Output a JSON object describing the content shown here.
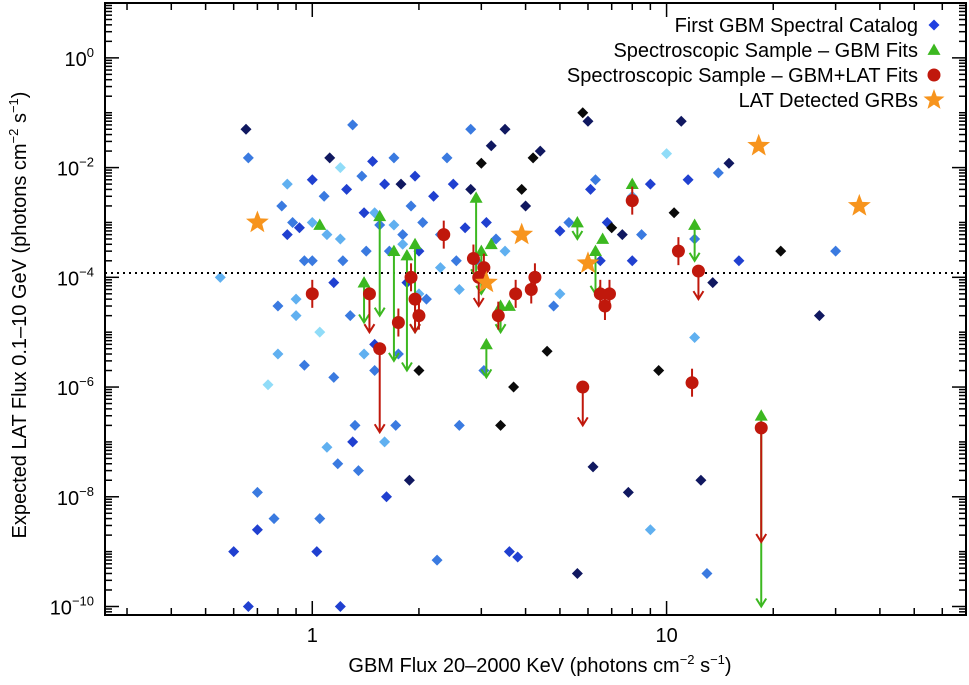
{
  "chart_data": {
    "type": "scatter",
    "xlabel": "GBM Flux 20–2000 KeV (photons cm",
    "xlabel_sup1": "−2",
    "xlabel_mid": " s",
    "xlabel_sup2": "−1",
    "xlabel_end": ")",
    "ylabel": "Expected LAT Flux 0.1–10 GeV (photons cm",
    "ylabel_sup1": "−2",
    "ylabel_mid": " s",
    "ylabel_sup2": "−1",
    "ylabel_end": ")",
    "x_scale": "log",
    "y_scale": "log",
    "xlim": [
      0.26,
      70
    ],
    "ylim": [
      7e-11,
      10
    ],
    "x_ticks": [
      {
        "value": 1,
        "label": "1"
      },
      {
        "value": 10,
        "label": "10"
      }
    ],
    "y_ticks": [
      {
        "value": 1e-10,
        "base": "10",
        "exp": "−10"
      },
      {
        "value": 1e-08,
        "base": "10",
        "exp": "−8"
      },
      {
        "value": 1e-06,
        "base": "10",
        "exp": "−6"
      },
      {
        "value": 0.0001,
        "base": "10",
        "exp": "−4"
      },
      {
        "value": 0.01,
        "base": "10",
        "exp": "−2"
      },
      {
        "value": 1,
        "base": "10",
        "exp": "0"
      }
    ],
    "threshold_line": {
      "y": 0.00012,
      "style": "dotted"
    },
    "legend_position": "top-right",
    "legend": [
      {
        "label": "First GBM Spectral Catalog",
        "marker": "diamond",
        "color": "#2040e0"
      },
      {
        "label": "Spectroscopic Sample – GBM Fits",
        "marker": "triangle",
        "color": "#3cb820"
      },
      {
        "label": "Spectroscopic Sample – GBM+LAT Fits",
        "marker": "circle",
        "color": "#c0180c"
      },
      {
        "label": "LAT Detected GRBs",
        "marker": "star",
        "color": "#f7941d"
      }
    ],
    "catalog_colors": [
      "#60b0f0",
      "#3a7ae0",
      "#2040d0",
      "#101860",
      "#0a0a0a",
      "#90dcf8"
    ],
    "series": [
      {
        "name": "First GBM Spectral Catalog",
        "marker": "diamond",
        "points": [
          [
            0.65,
            0.05,
            3
          ],
          [
            0.66,
            0.015,
            1
          ],
          [
            0.55,
            0.0001,
            0
          ],
          [
            0.6,
            1e-09,
            2
          ],
          [
            0.66,
            1e-10,
            2
          ],
          [
            0.7,
            1.2e-08,
            1
          ],
          [
            0.7,
            2.5e-09,
            2
          ],
          [
            0.75,
            1.1e-06,
            5
          ],
          [
            0.78,
            4e-09,
            1
          ],
          [
            0.8,
            4e-06,
            0
          ],
          [
            0.8,
            3e-05,
            1
          ],
          [
            0.82,
            0.002,
            1
          ],
          [
            0.85,
            0.0006,
            2
          ],
          [
            0.88,
            0.001,
            1
          ],
          [
            0.9,
            4e-05,
            0
          ],
          [
            0.92,
            0.0008,
            2
          ],
          [
            0.95,
            0.0002,
            1
          ],
          [
            0.95,
            2.5e-06,
            1
          ],
          [
            1.0,
            0.0002,
            1
          ],
          [
            1.0,
            0.006,
            2
          ],
          [
            1.03,
            1e-09,
            2
          ],
          [
            1.05,
            4e-09,
            1
          ],
          [
            1.05,
            1e-05,
            5
          ],
          [
            1.08,
            0.003,
            1
          ],
          [
            1.1,
            0.0006,
            0
          ],
          [
            1.12,
            0.015,
            3
          ],
          [
            1.15,
            1.5e-06,
            1
          ],
          [
            1.15,
            8e-05,
            2
          ],
          [
            1.18,
            4e-08,
            1
          ],
          [
            1.2,
            1e-10,
            2
          ],
          [
            1.2,
            0.01,
            5
          ],
          [
            1.22,
            0.0002,
            1
          ],
          [
            1.25,
            0.004,
            2
          ],
          [
            1.28,
            2e-05,
            1
          ],
          [
            1.3,
            0.06,
            1
          ],
          [
            1.3,
            1e-07,
            2
          ],
          [
            1.32,
            2e-07,
            1
          ],
          [
            1.35,
            3e-08,
            1
          ],
          [
            1.38,
            0.007,
            1
          ],
          [
            1.4,
            0.0015,
            2
          ],
          [
            1.42,
            0.0003,
            1
          ],
          [
            1.45,
            5e-05,
            1
          ],
          [
            1.48,
            0.013,
            2
          ],
          [
            1.5,
            2e-06,
            1
          ],
          [
            1.5,
            6e-06,
            2
          ],
          [
            1.55,
            0.0009,
            1
          ],
          [
            1.6,
            0.005,
            2
          ],
          [
            1.62,
            1e-08,
            2
          ],
          [
            1.65,
            0.0003,
            1
          ],
          [
            1.7,
            0.015,
            1
          ],
          [
            1.72,
            2e-07,
            1
          ],
          [
            1.75,
            4e-06,
            1
          ],
          [
            1.78,
            0.005,
            3
          ],
          [
            1.8,
            0.0006,
            1
          ],
          [
            1.85,
            8e-05,
            2
          ],
          [
            1.88,
            2e-08,
            3
          ],
          [
            1.9,
            0.002,
            1
          ],
          [
            1.95,
            0.007,
            2
          ],
          [
            2.0,
            2e-06,
            4
          ],
          [
            2.0,
            0.0003,
            2
          ],
          [
            2.05,
            0.001,
            1
          ],
          [
            2.1,
            4e-05,
            1
          ],
          [
            2.2,
            0.003,
            2
          ],
          [
            2.25,
            7e-10,
            1
          ],
          [
            2.3,
            0.0006,
            1
          ],
          [
            2.4,
            0.015,
            1
          ],
          [
            2.5,
            0.005,
            2
          ],
          [
            2.55,
            0.0002,
            1
          ],
          [
            2.6,
            2e-07,
            1
          ],
          [
            2.7,
            0.0008,
            2
          ],
          [
            2.8,
            0.05,
            1
          ],
          [
            2.8,
            0.004,
            3
          ],
          [
            2.9,
            0.0002,
            1
          ],
          [
            3.0,
            0.012,
            4
          ],
          [
            3.05,
            2e-06,
            1
          ],
          [
            3.1,
            0.001,
            2
          ],
          [
            3.2,
            0.025,
            3
          ],
          [
            3.3,
            0.0005,
            1
          ],
          [
            3.4,
            2e-07,
            4
          ],
          [
            3.5,
            0.05,
            3
          ],
          [
            3.6,
            1e-09,
            2
          ],
          [
            3.7,
            1e-06,
            4
          ],
          [
            3.8,
            8e-10,
            2
          ],
          [
            3.9,
            0.004,
            4
          ],
          [
            4.0,
            0.002,
            3
          ],
          [
            4.2,
            0.015,
            4
          ],
          [
            4.4,
            0.02,
            3
          ],
          [
            4.6,
            4.5e-06,
            4
          ],
          [
            4.8,
            3e-05,
            1
          ],
          [
            5.0,
            0.0007,
            2
          ],
          [
            5.3,
            0.001,
            1
          ],
          [
            5.6,
            4e-10,
            3
          ],
          [
            5.8,
            0.1,
            4
          ],
          [
            6.0,
            0.07,
            3
          ],
          [
            6.1,
            0.004,
            2
          ],
          [
            6.2,
            3.5e-08,
            3
          ],
          [
            6.3,
            0.006,
            1
          ],
          [
            6.5,
            0.0002,
            2
          ],
          [
            6.8,
            0.001,
            2
          ],
          [
            7.0,
            0.0008,
            4
          ],
          [
            7.5,
            0.0006,
            3
          ],
          [
            7.8,
            1.2e-08,
            3
          ],
          [
            8.0,
            0.0002,
            2
          ],
          [
            8.5,
            0.0006,
            1
          ],
          [
            9.0,
            0.005,
            2
          ],
          [
            9.5,
            2e-06,
            4
          ],
          [
            10.0,
            0.018,
            5
          ],
          [
            10.5,
            0.0015,
            4
          ],
          [
            11.0,
            0.07,
            3
          ],
          [
            11.5,
            0.006,
            2
          ],
          [
            12.0,
            0.0005,
            1
          ],
          [
            12.5,
            2e-08,
            3
          ],
          [
            13.0,
            4e-10,
            1
          ],
          [
            13.5,
            8e-05,
            3
          ],
          [
            14.0,
            0.008,
            1
          ],
          [
            15.0,
            0.012,
            3
          ],
          [
            16.0,
            0.0002,
            2
          ],
          [
            21.0,
            0.0003,
            4
          ],
          [
            27.0,
            2e-05,
            3
          ],
          [
            30.0,
            0.0003,
            1
          ],
          [
            1.5,
            0.0015,
            0
          ],
          [
            2.0,
            5e-05,
            0
          ],
          [
            1.2,
            0.0005,
            0
          ],
          [
            1.0,
            0.001,
            0
          ],
          [
            1.6,
            1e-07,
            0
          ],
          [
            0.9,
            2e-05,
            0
          ],
          [
            1.8,
            0.0004,
            0
          ],
          [
            2.3,
            0.00015,
            0
          ],
          [
            3.5,
            0.0003,
            0
          ],
          [
            2.6,
            6e-05,
            0
          ],
          [
            1.1,
            8e-08,
            0
          ],
          [
            0.85,
            0.005,
            0
          ],
          [
            5.0,
            5e-05,
            0
          ],
          [
            8.0,
            0.003,
            0
          ],
          [
            1.4,
            4e-06,
            0
          ],
          [
            1.7,
            0.0009,
            0
          ],
          [
            12.0,
            8e-06,
            0
          ],
          [
            9.0,
            2.5e-09,
            0
          ]
        ]
      },
      {
        "name": "Spectroscopic Sample – GBM Fits",
        "marker": "triangle",
        "points": [
          [
            1.05,
            0.0009,
            null
          ],
          [
            1.4,
            8e-05,
            1.5e-05
          ],
          [
            1.55,
            0.0013,
            2e-05
          ],
          [
            1.7,
            0.0003,
            3e-06
          ],
          [
            1.85,
            0.00025,
            2e-06
          ],
          [
            1.95,
            0.0004,
            1e-05
          ],
          [
            2.9,
            0.0028,
            0.0001
          ],
          [
            3.0,
            0.0003,
            5e-05
          ],
          [
            3.2,
            0.0004,
            null
          ],
          [
            3.4,
            3e-05,
            1e-05
          ],
          [
            3.1,
            6e-06,
            1.5e-06
          ],
          [
            3.6,
            3e-05,
            null
          ],
          [
            5.6,
            0.001,
            0.0005
          ],
          [
            6.3,
            0.0003,
            5e-05
          ],
          [
            6.6,
            0.0005,
            null
          ],
          [
            8.0,
            0.005,
            null
          ],
          [
            12.0,
            0.0009,
            0.0002
          ],
          [
            18.5,
            3e-07,
            1e-10
          ]
        ]
      },
      {
        "name": "Spectroscopic Sample – GBM+LAT Fits",
        "marker": "circle",
        "points": [
          [
            1.0,
            5e-05,
            null
          ],
          [
            1.45,
            5e-05,
            1e-05
          ],
          [
            1.55,
            5e-06,
            1.5e-07
          ],
          [
            1.75,
            1.5e-05,
            null
          ],
          [
            1.9,
            0.0001,
            null
          ],
          [
            1.95,
            4e-05,
            1e-05
          ],
          [
            2.0,
            2e-05,
            null
          ],
          [
            2.35,
            0.0006,
            null
          ],
          [
            2.85,
            0.00022,
            null
          ],
          [
            2.95,
            0.0001,
            3e-05
          ],
          [
            3.05,
            0.00015,
            null
          ],
          [
            3.35,
            2e-05,
            null
          ],
          [
            3.75,
            5e-05,
            null
          ],
          [
            4.15,
            6e-05,
            null
          ],
          [
            4.25,
            0.0001,
            null
          ],
          [
            5.8,
            1e-06,
            2e-07
          ],
          [
            6.5,
            5e-05,
            null
          ],
          [
            6.7,
            3e-05,
            null
          ],
          [
            6.9,
            5e-05,
            null
          ],
          [
            8.0,
            0.0025,
            null
          ],
          [
            10.8,
            0.0003,
            null
          ],
          [
            11.8,
            1.2e-06,
            null
          ],
          [
            12.3,
            0.00013,
            4e-05
          ],
          [
            18.5,
            1.8e-07,
            1.5e-09
          ]
        ]
      },
      {
        "name": "LAT Detected GRBs",
        "marker": "star",
        "points": [
          [
            0.7,
            0.001
          ],
          [
            3.1,
            8e-05
          ],
          [
            3.9,
            0.0006
          ],
          [
            6.0,
            0.00018
          ],
          [
            18.2,
            0.025
          ],
          [
            35.0,
            0.002
          ]
        ]
      }
    ]
  }
}
